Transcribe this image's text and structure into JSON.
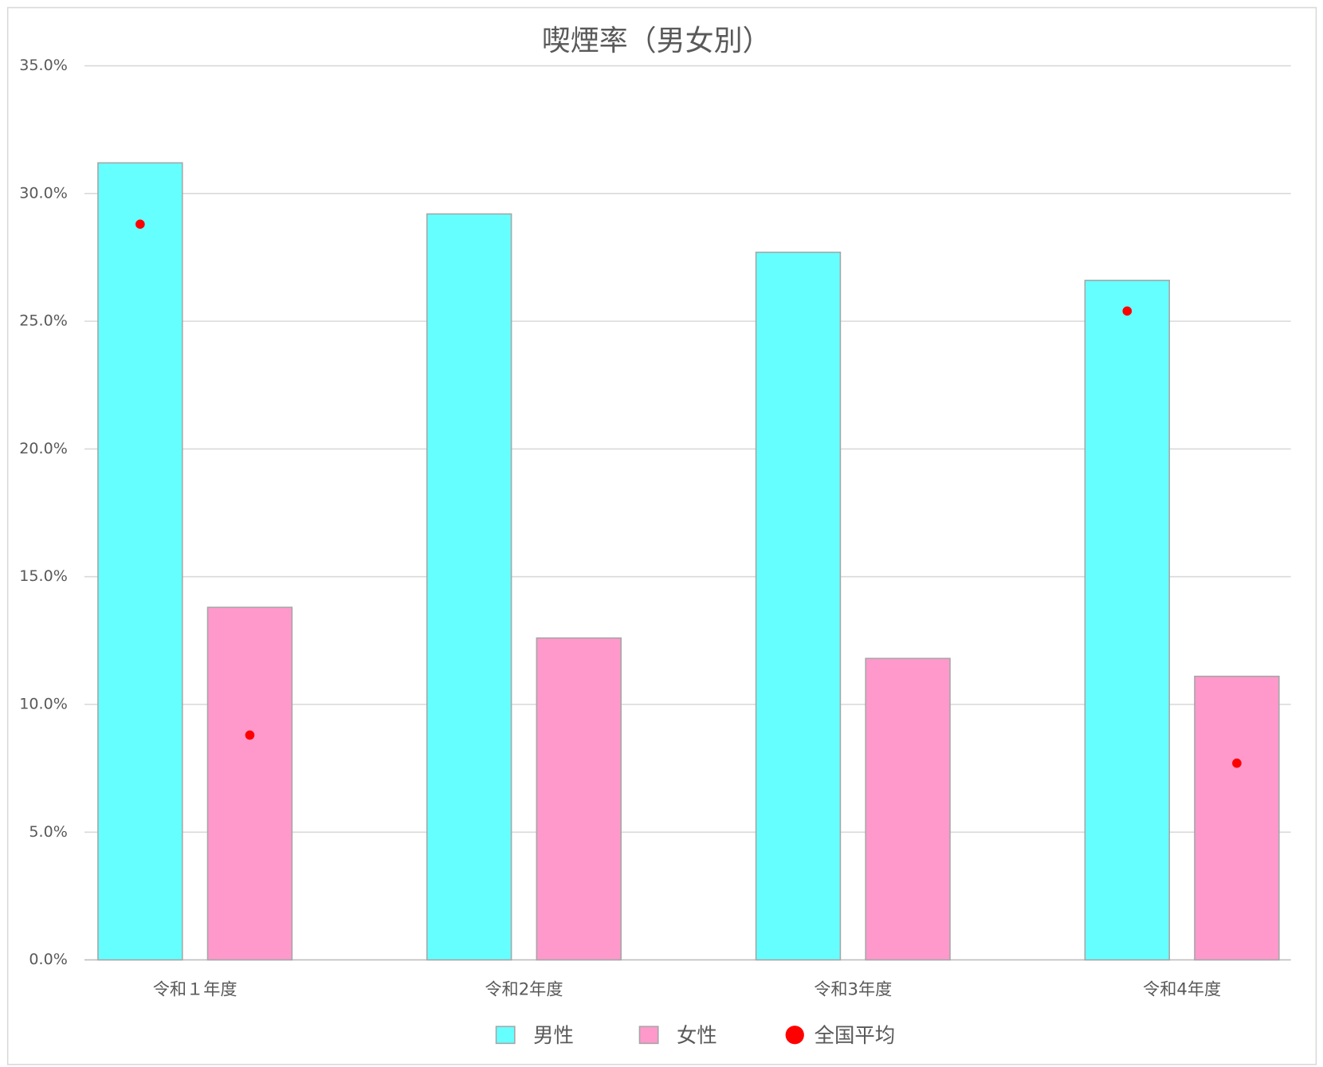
{
  "chart_data": {
    "type": "bar",
    "title": "喫煙率（男女別）",
    "categories": [
      "令和１年度",
      "令和2年度",
      "令和3年度",
      "令和4年度"
    ],
    "series": [
      {
        "name": "男性",
        "color": "#66ffff",
        "values": [
          31.2,
          29.2,
          27.7,
          26.6
        ]
      },
      {
        "name": "女性",
        "color": "#ff99cc",
        "values": [
          13.8,
          12.6,
          11.8,
          11.1
        ]
      },
      {
        "name": "全国平均",
        "color": "#ff0000",
        "type": "scatter",
        "values": [
          [
            28.8,
            8.8
          ],
          [
            null,
            null
          ],
          [
            null,
            null
          ],
          [
            25.4,
            7.7
          ]
        ]
      }
    ],
    "ylim": [
      0,
      35
    ],
    "yticks": [
      {
        "value": 0,
        "label": "0.0%"
      },
      {
        "value": 5,
        "label": "5.0%"
      },
      {
        "value": 10,
        "label": "10.0%"
      },
      {
        "value": 15,
        "label": "15.0%"
      },
      {
        "value": 20,
        "label": "20.0%"
      },
      {
        "value": 25,
        "label": "25.0%"
      },
      {
        "value": 30,
        "label": "30.0%"
      },
      {
        "value": 35,
        "label": "35.0%"
      }
    ],
    "grid": true,
    "legend": "bottom"
  }
}
